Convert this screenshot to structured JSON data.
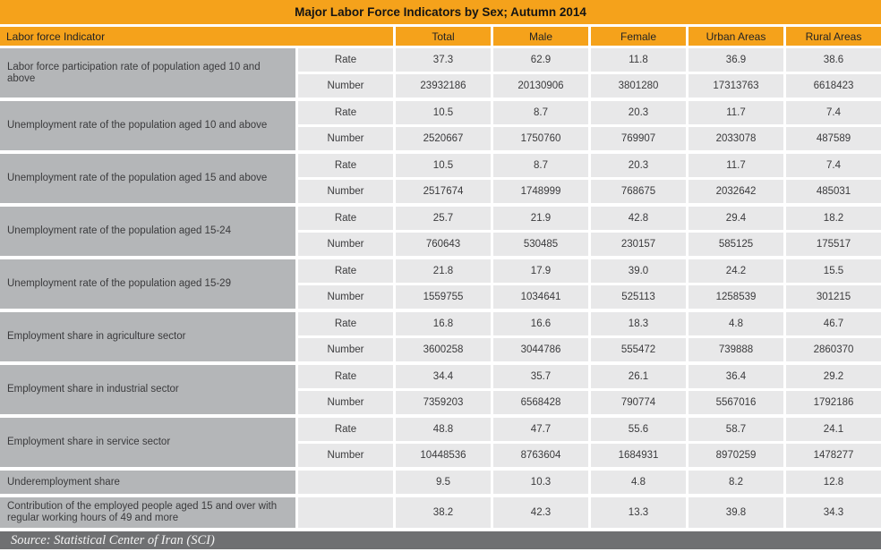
{
  "title": "Major Labor Force Indicators by Sex; Autumn 2014",
  "table": {
    "indicator_header": "Labor force Indicator",
    "columns": [
      "Total",
      "Male",
      "Female",
      "Urban Areas",
      "Rural Areas"
    ],
    "groups": [
      {
        "indicator": "Labor force participation rate of population aged 10 and above",
        "rows": [
          {
            "label": "Rate",
            "values": [
              "37.3",
              "62.9",
              "11.8",
              "36.9",
              "38.6"
            ]
          },
          {
            "label": "Number",
            "values": [
              "23932186",
              "20130906",
              "3801280",
              "17313763",
              "6618423"
            ]
          }
        ]
      },
      {
        "indicator": "Unemployment rate of the population aged 10 and above",
        "rows": [
          {
            "label": "Rate",
            "values": [
              "10.5",
              "8.7",
              "20.3",
              "11.7",
              "7.4"
            ]
          },
          {
            "label": "Number",
            "values": [
              "2520667",
              "1750760",
              "769907",
              "2033078",
              "487589"
            ]
          }
        ]
      },
      {
        "indicator": "Unemployment rate of the population aged 15 and above",
        "rows": [
          {
            "label": "Rate",
            "values": [
              "10.5",
              "8.7",
              "20.3",
              "11.7",
              "7.4"
            ]
          },
          {
            "label": "Number",
            "values": [
              "2517674",
              "1748999",
              "768675",
              "2032642",
              "485031"
            ]
          }
        ]
      },
      {
        "indicator": "Unemployment rate of the population aged 15-24",
        "rows": [
          {
            "label": "Rate",
            "values": [
              "25.7",
              "21.9",
              "42.8",
              "29.4",
              "18.2"
            ]
          },
          {
            "label": "Number",
            "values": [
              "760643",
              "530485",
              "230157",
              "585125",
              "175517"
            ]
          }
        ]
      },
      {
        "indicator": "Unemployment rate of the population aged 15-29",
        "rows": [
          {
            "label": "Rate",
            "values": [
              "21.8",
              "17.9",
              "39.0",
              "24.2",
              "15.5"
            ]
          },
          {
            "label": "Number",
            "values": [
              "1559755",
              "1034641",
              "525113",
              "1258539",
              "301215"
            ]
          }
        ]
      },
      {
        "indicator": "Employment share in agriculture sector",
        "rows": [
          {
            "label": "Rate",
            "values": [
              "16.8",
              "16.6",
              "18.3",
              "4.8",
              "46.7"
            ]
          },
          {
            "label": "Number",
            "values": [
              "3600258",
              "3044786",
              "555472",
              "739888",
              "2860370"
            ]
          }
        ]
      },
      {
        "indicator": "Employment share in industrial sector",
        "rows": [
          {
            "label": "Rate",
            "values": [
              "34.4",
              "35.7",
              "26.1",
              "36.4",
              "29.2"
            ]
          },
          {
            "label": "Number",
            "values": [
              "7359203",
              "6568428",
              "790774",
              "5567016",
              "1792186"
            ]
          }
        ]
      },
      {
        "indicator": "Employment share in service sector",
        "rows": [
          {
            "label": "Rate",
            "values": [
              "48.8",
              "47.7",
              "55.6",
              "58.7",
              "24.1"
            ]
          },
          {
            "label": "Number",
            "values": [
              "10448536",
              "8763604",
              "1684931",
              "8970259",
              "1478277"
            ]
          }
        ]
      },
      {
        "indicator": "Underemployment share",
        "rows": [
          {
            "label": "",
            "values": [
              "9.5",
              "10.3",
              "4.8",
              "8.2",
              "12.8"
            ]
          }
        ]
      },
      {
        "indicator": "Contribution of the employed people aged 15 and over with regular working hours of 49 and more",
        "rows": [
          {
            "label": "",
            "values": [
              "38.2",
              "42.3",
              "13.3",
              "39.8",
              "34.3"
            ]
          }
        ]
      }
    ]
  },
  "footer": {
    "source": "Source: Statistical Center of Iran (SCI)"
  },
  "colors": {
    "accent_orange": "#F5A21B",
    "indicator_gray": "#B4B6B8",
    "cell_gray": "#E8E8E9",
    "footer_gray": "#6F7072"
  }
}
